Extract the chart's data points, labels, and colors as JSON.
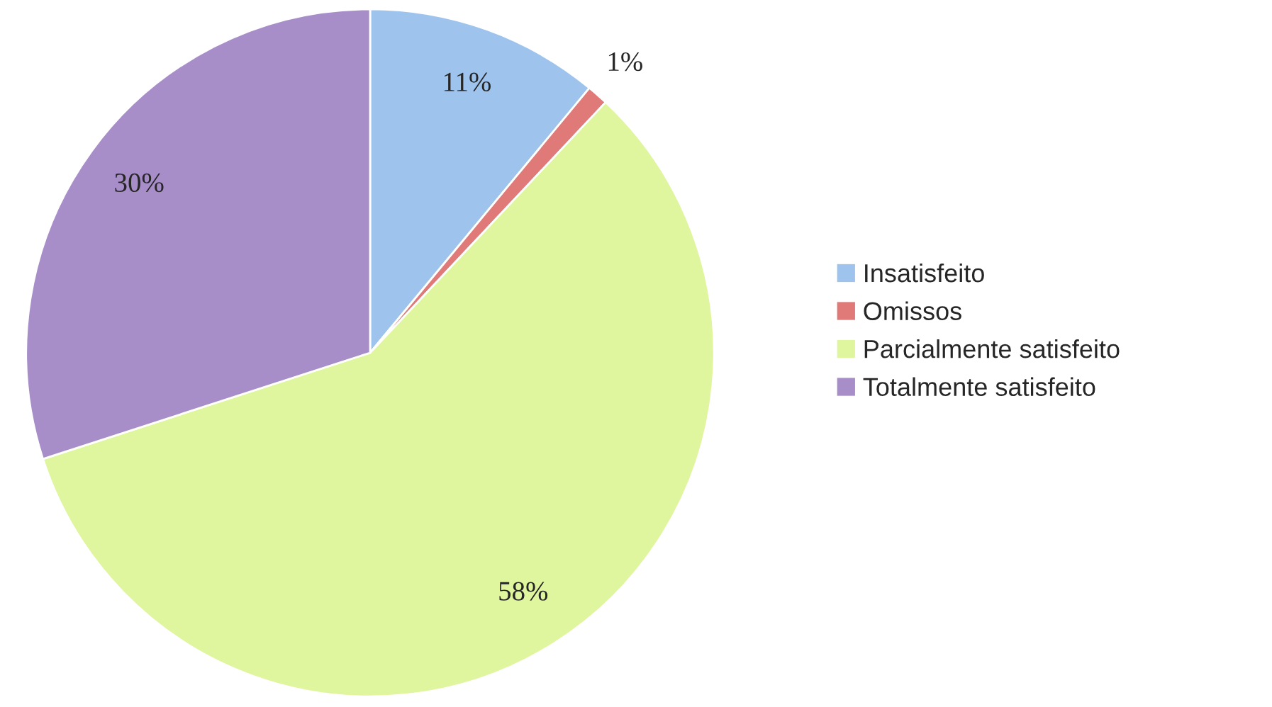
{
  "chart_data": {
    "type": "pie",
    "categories": [
      "Insatisfeito",
      "Omissos",
      "Parcialmente satisfeito",
      "Totalmente satisfeito"
    ],
    "values": [
      11,
      1,
      58,
      30
    ],
    "colors": [
      "#9ec4ee",
      "#e07a78",
      "#dff59e",
      "#a78ec9"
    ],
    "value_labels": [
      "11%",
      "1%",
      "58%",
      "30%"
    ],
    "legend": "right"
  }
}
